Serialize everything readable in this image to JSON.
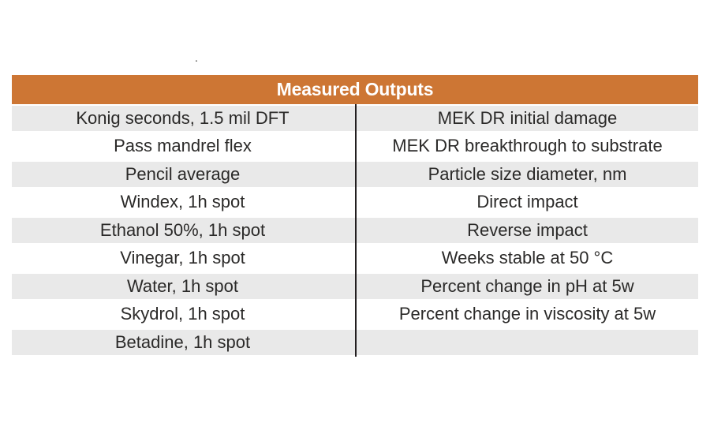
{
  "page": {
    "background": "#ffffff",
    "stray_mark": "."
  },
  "table": {
    "title": "Measured Outputs",
    "header_bg": "#cd7634",
    "header_text_color": "#ffffff",
    "row_alt_bg": "#e9e9e9",
    "row_bg": "#ffffff",
    "text_color": "#2b2a29",
    "divider_color": "#231f20",
    "rows": [
      {
        "left": "Konig seconds, 1.5 mil DFT",
        "right": "MEK DR initial damage"
      },
      {
        "left": "Pass mandrel flex",
        "right": "MEK DR breakthrough to substrate"
      },
      {
        "left": "Pencil average",
        "right": "Particle size diameter, nm"
      },
      {
        "left": "Windex, 1h spot",
        "right": "Direct impact"
      },
      {
        "left": "Ethanol 50%, 1h spot",
        "right": "Reverse impact"
      },
      {
        "left": "Vinegar, 1h spot",
        "right": "Weeks stable at 50 °C"
      },
      {
        "left": "Water, 1h spot",
        "right": "Percent change in pH at 5w"
      },
      {
        "left": "Skydrol, 1h spot",
        "right": "Percent change in viscosity at 5w"
      },
      {
        "left": "Betadine, 1h spot",
        "right": ""
      }
    ]
  }
}
